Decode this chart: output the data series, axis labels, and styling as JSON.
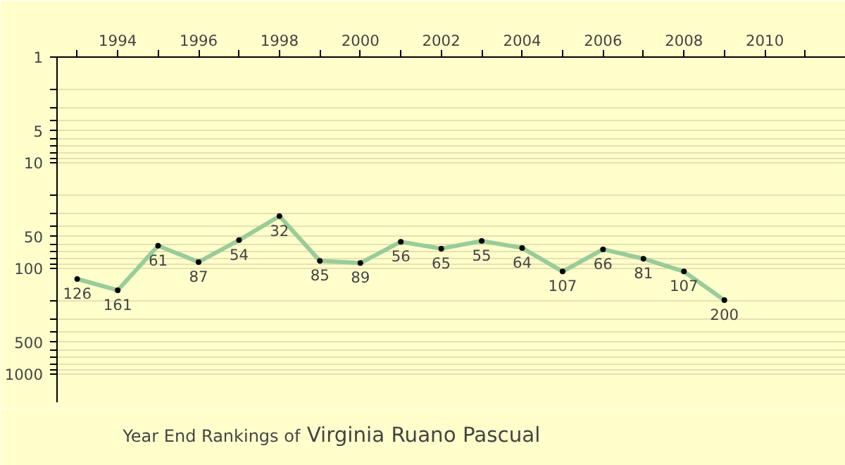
{
  "chart_data": {
    "type": "line",
    "title": "Year End Rankings of",
    "subtitle": "Virginia Ruano Pascual",
    "x": [
      1993,
      1994,
      1995,
      1996,
      1997,
      1998,
      1999,
      2000,
      2001,
      2002,
      2003,
      2004,
      2005,
      2006,
      2007,
      2008,
      2009
    ],
    "series": [
      {
        "color": "#99cc99",
        "values": [
          126,
          161,
          61,
          87,
          54,
          32,
          85,
          89,
          56,
          65,
          55,
          64,
          107,
          66,
          81,
          107,
          200
        ]
      }
    ],
    "data_labels": true,
    "marker": "circle",
    "log": "y",
    "grid": "y",
    "xlim": [
      1992.5,
      2012
    ],
    "xticks": [
      {
        "value": 1993,
        "label": null
      },
      1994,
      {
        "value": 1995,
        "label": null
      },
      1996,
      {
        "value": 1997,
        "label": null
      },
      1998,
      {
        "value": 1999,
        "label": null
      },
      2000,
      {
        "value": 2001,
        "label": null
      },
      2002,
      {
        "value": 2003,
        "label": null
      },
      2004,
      {
        "value": 2005,
        "label": null
      },
      2006,
      {
        "value": 2007,
        "label": null
      },
      2008,
      {
        "value": 2009,
        "label": null
      },
      2010,
      {
        "value": 2011,
        "label": null
      }
    ],
    "ylim": [
      1850,
      1
    ],
    "yticks": [
      1,
      {
        "value": 2,
        "label": null
      },
      {
        "value": 3,
        "label": null
      },
      {
        "value": 4,
        "label": null
      },
      5,
      {
        "value": 6,
        "label": null
      },
      {
        "value": 7,
        "label": null
      },
      {
        "value": 8,
        "label": null
      },
      {
        "value": 9,
        "label": null
      },
      10,
      {
        "value": 20,
        "label": null
      },
      {
        "value": 30,
        "label": null
      },
      {
        "value": 40,
        "label": null
      },
      50,
      {
        "value": 60,
        "label": null
      },
      {
        "value": 70,
        "label": null
      },
      {
        "value": 80,
        "label": null
      },
      {
        "value": 90,
        "label": null
      },
      100,
      {
        "value": 200,
        "label": null
      },
      {
        "value": 300,
        "label": null
      },
      {
        "value": 400,
        "label": null
      },
      500,
      {
        "value": 600,
        "label": null
      },
      {
        "value": 700,
        "label": null
      },
      {
        "value": 800,
        "label": null
      },
      {
        "value": 900,
        "label": null
      },
      1000
    ]
  }
}
